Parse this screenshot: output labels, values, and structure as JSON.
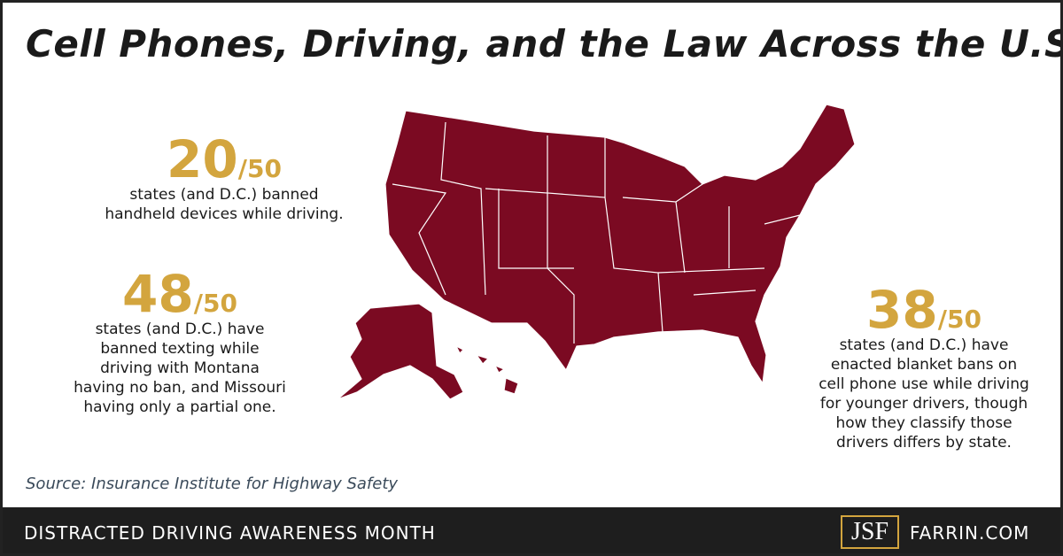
{
  "header": {
    "title": "Cell Phones, Driving, and the Law Across the U.S."
  },
  "stats": [
    {
      "number": "20",
      "total": "/50",
      "lines": [
        "states (and D.C.) banned",
        "handheld devices while driving."
      ]
    },
    {
      "number": "48",
      "total": "/50",
      "lines": [
        "states (and D.C.) have",
        "banned texting while",
        "driving with Montana",
        "having no ban, and Missouri",
        "having only a partial one."
      ]
    },
    {
      "number": "38",
      "total": "/50",
      "lines": [
        "states (and D.C.) have",
        "enacted blanket bans on",
        "cell phone use while driving",
        "for younger drivers, though",
        "how they classify those",
        "drivers differs by state."
      ]
    }
  ],
  "source": "Source: Insurance Institute for Highway Safety",
  "footer": {
    "left": "DISTRACTED DRIVING AWARENESS MONTH",
    "logo": "JSF",
    "site": "FARRIN.COM"
  }
}
